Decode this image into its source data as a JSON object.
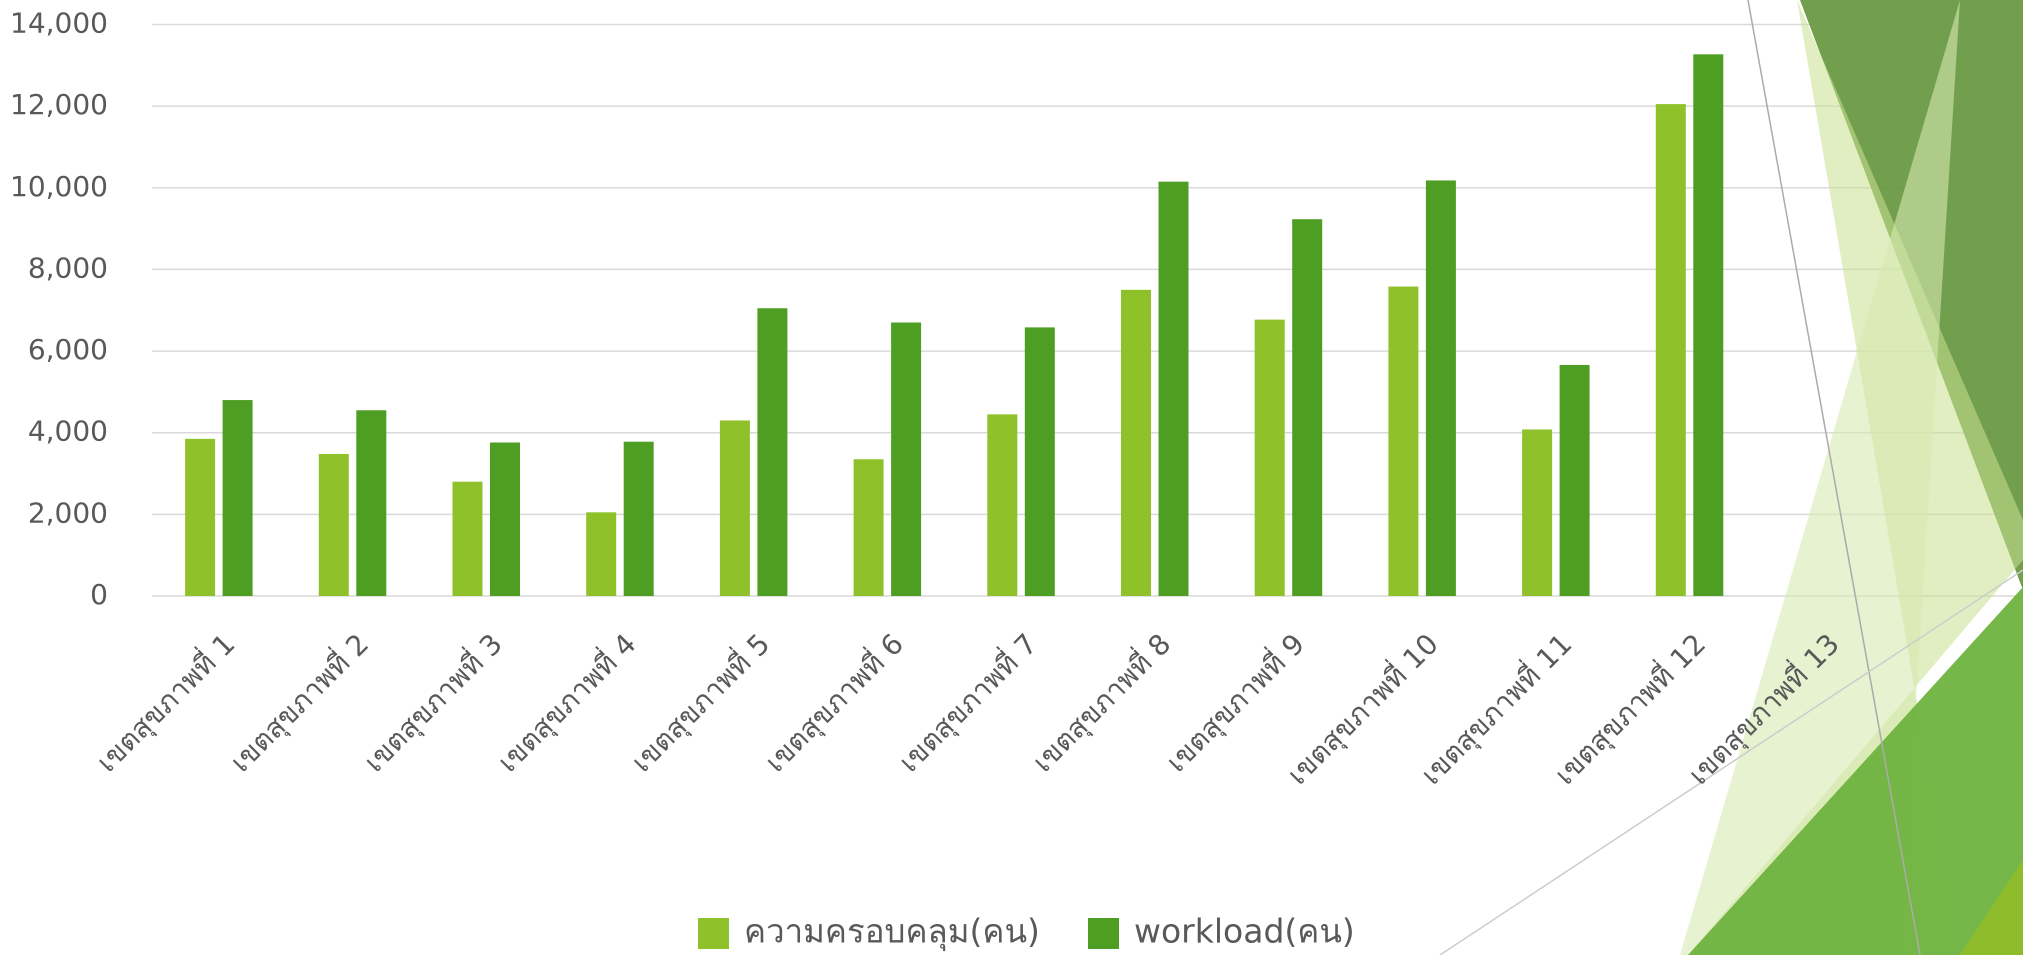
{
  "chart_data": {
    "type": "bar",
    "categories": [
      "เขตสุขภาพที่ 1",
      "เขตสุขภาพที่ 2",
      "เขตสุขภาพที่ 3",
      "เขตสุขภาพที่ 4",
      "เขตสุขภาพที่ 5",
      "เขตสุขภาพที่ 6",
      "เขตสุขภาพที่ 7",
      "เขตสุขภาพที่ 8",
      "เขตสุขภาพที่ 9",
      "เขตสุขภาพที่ 10",
      "เขตสุขภาพที่ 11",
      "เขตสุขภาพที่ 12",
      "เขตสุขภาพที่ 13"
    ],
    "series": [
      {
        "name": "ความครอบคลุม(คน)",
        "color": "#8fc22a",
        "values": [
          3850,
          3480,
          2800,
          2050,
          4300,
          3350,
          4450,
          7500,
          6770,
          7580,
          4080,
          12050,
          null
        ]
      },
      {
        "name": "workload(คน)",
        "color": "#4f9e24",
        "values": [
          4800,
          4550,
          3760,
          3780,
          7050,
          6700,
          6580,
          10150,
          9230,
          10180,
          5660,
          13270,
          null
        ]
      }
    ],
    "ylim": [
      0,
      14000
    ],
    "yticks": [
      0,
      {
        "value": 2000,
        "label": "2,000"
      },
      {
        "value": 4000,
        "label": "4,000"
      },
      {
        "value": 6000,
        "label": "6,000"
      },
      {
        "value": 8000,
        "label": "8,000"
      },
      {
        "value": 10000,
        "label": "10,000"
      },
      {
        "value": 12000,
        "label": "12,000"
      },
      {
        "value": 14000,
        "label": "14,000"
      }
    ],
    "grid": true,
    "legend": "bottom"
  }
}
